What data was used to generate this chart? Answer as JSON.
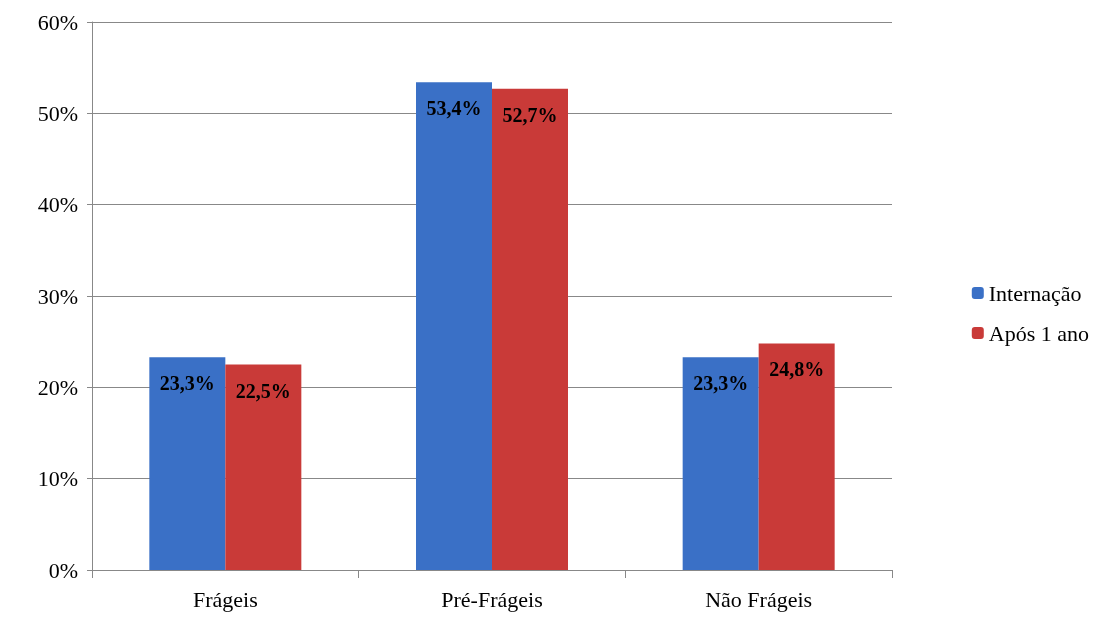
{
  "chart_data": {
    "type": "bar",
    "categories": [
      "Frágeis",
      "Pré-Frágeis",
      "Não Frágeis"
    ],
    "series": [
      {
        "name": "Internação",
        "color": "#3a70c6",
        "values": [
          23.3,
          53.4,
          23.3
        ],
        "value_labels": [
          "23,3%",
          "53,4%",
          "23,3%"
        ]
      },
      {
        "name": "Após 1 ano",
        "color": "#c93a38",
        "values": [
          22.5,
          52.7,
          24.8
        ],
        "value_labels": [
          "22,5%",
          "52,7%",
          "24,8%"
        ]
      }
    ],
    "ylim": [
      0,
      60
    ],
    "yticks": [
      {
        "value": 0,
        "label": "0%"
      },
      {
        "value": 10,
        "label": "10%"
      },
      {
        "value": 20,
        "label": "20%"
      },
      {
        "value": 30,
        "label": "30%"
      },
      {
        "value": 40,
        "label": "40%"
      },
      {
        "value": 50,
        "label": "50%"
      },
      {
        "value": 60,
        "label": "60%"
      }
    ],
    "grid": "y",
    "legend": "right"
  }
}
